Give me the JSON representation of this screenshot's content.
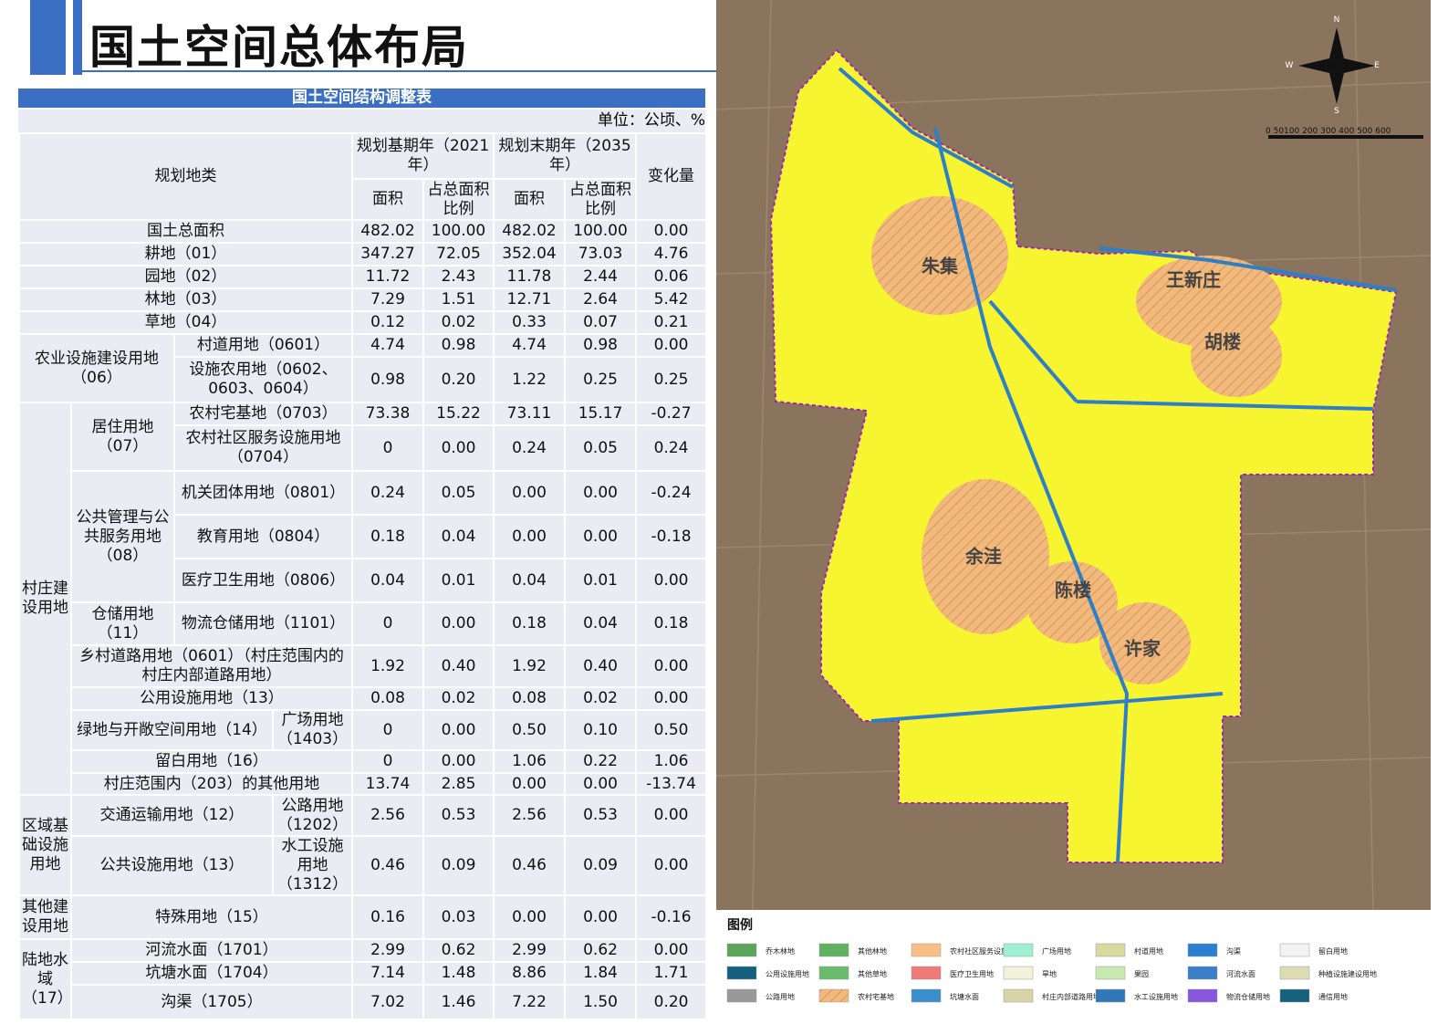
{
  "header": {
    "title": "国土空间总体布局"
  },
  "table": {
    "title": "国土空间结构调整表",
    "unit": "单位：公顷、%",
    "head": {
      "category": "规划地类",
      "base": "规划基期年（2021年）",
      "target": "规划末期年（2035年）",
      "change": "变化量",
      "sub": [
        "面积",
        "占总面积比例",
        "面积",
        "占总面积比例"
      ]
    },
    "rows": [
      {
        "cells": [
          "国土总面积"
        ],
        "values": [
          "482.02",
          "100.00",
          "482.02",
          "100.00",
          "0.00"
        ]
      },
      {
        "cells": [
          "耕地（01）"
        ],
        "values": [
          "347.27",
          "72.05",
          "352.04",
          "73.03",
          "4.76"
        ]
      },
      {
        "cells": [
          "园地（02）"
        ],
        "values": [
          "11.72",
          "2.43",
          "11.78",
          "2.44",
          "0.06"
        ]
      },
      {
        "cells": [
          "林地（03）"
        ],
        "values": [
          "7.29",
          "1.51",
          "12.71",
          "2.64",
          "5.42"
        ]
      },
      {
        "cells": [
          "草地（04）"
        ],
        "values": [
          "0.12",
          "0.02",
          "0.33",
          "0.07",
          "0.21"
        ]
      },
      {
        "cells": [
          "农业设施建设用地（06）",
          "村道用地（0601）"
        ],
        "values": [
          "4.74",
          "0.98",
          "4.74",
          "0.98",
          "0.00"
        ]
      },
      {
        "cells": [
          "设施农用地（0602、0603、0604）"
        ],
        "values": [
          "0.98",
          "0.20",
          "1.22",
          "0.25",
          "0.25"
        ]
      },
      {
        "cells": [
          "村庄建设用地",
          "居住用地（07）",
          "农村宅基地（0703）"
        ],
        "values": [
          "73.38",
          "15.22",
          "73.11",
          "15.17",
          "-0.27"
        ]
      },
      {
        "cells": [
          "农村社区服务设施用地（0704）"
        ],
        "values": [
          "0",
          "0.00",
          "0.24",
          "0.05",
          "0.24"
        ]
      },
      {
        "cells": [
          "公共管理与公共服务用地（08）",
          "机关团体用地（0801）"
        ],
        "values": [
          "0.24",
          "0.05",
          "0.00",
          "0.00",
          "-0.24"
        ]
      },
      {
        "cells": [
          "教育用地（0804）"
        ],
        "values": [
          "0.18",
          "0.04",
          "0.00",
          "0.00",
          "-0.18"
        ]
      },
      {
        "cells": [
          "医疗卫生用地（0806）"
        ],
        "values": [
          "0.04",
          "0.01",
          "0.04",
          "0.01",
          "0.00"
        ]
      },
      {
        "cells": [
          "仓储用地（11）",
          "物流仓储用地（1101）"
        ],
        "values": [
          "0",
          "0.00",
          "0.18",
          "0.04",
          "0.18"
        ]
      },
      {
        "cells": [
          "乡村道路用地（0601）（村庄范围内的村庄内部道路用地）"
        ],
        "values": [
          "1.92",
          "0.40",
          "1.92",
          "0.40",
          "0.00"
        ]
      },
      {
        "cells": [
          "公用设施用地（13）"
        ],
        "values": [
          "0.08",
          "0.02",
          "0.08",
          "0.02",
          "0.00"
        ]
      },
      {
        "cells": [
          "绿地与开敞空间用地（14）",
          "广场用地（1403）"
        ],
        "values": [
          "0",
          "0.00",
          "0.50",
          "0.10",
          "0.50"
        ]
      },
      {
        "cells": [
          "留白用地（16）"
        ],
        "values": [
          "0",
          "0.00",
          "1.06",
          "0.22",
          "1.06"
        ]
      },
      {
        "cells": [
          "村庄范围内（203）的其他用地"
        ],
        "values": [
          "13.74",
          "2.85",
          "0.00",
          "0.00",
          "-13.74"
        ]
      },
      {
        "cells": [
          "区域基础设施用地",
          "交通运输用地（12）",
          "公路用地（1202）"
        ],
        "values": [
          "2.56",
          "0.53",
          "2.56",
          "0.53",
          "0.00"
        ]
      },
      {
        "cells": [
          "公共设施用地（13）",
          "水工设施用地（1312）"
        ],
        "values": [
          "0.46",
          "0.09",
          "0.46",
          "0.09",
          "0.00"
        ]
      },
      {
        "cells": [
          "其他建设用地",
          "特殊用地（15）"
        ],
        "values": [
          "0.16",
          "0.03",
          "0.00",
          "0.00",
          "-0.16"
        ]
      },
      {
        "cells": [
          "陆地水域（17）",
          "河流水面（1701）"
        ],
        "values": [
          "2.99",
          "0.62",
          "2.99",
          "0.62",
          "0.00"
        ]
      },
      {
        "cells": [
          "坑塘水面（1704）"
        ],
        "values": [
          "7.14",
          "1.48",
          "8.86",
          "1.84",
          "1.71"
        ]
      },
      {
        "cells": [
          "沟渠（1705）"
        ],
        "values": [
          "7.02",
          "1.46",
          "7.22",
          "1.50",
          "0.20"
        ]
      }
    ]
  },
  "map": {
    "places": [
      "朱集",
      "王新庄",
      "胡楼",
      "余洼",
      "陈楼",
      "许家"
    ],
    "compass": [
      "N",
      "S",
      "W",
      "E"
    ],
    "scale": "0 50100 200 300 400 500 600",
    "legend": {
      "title": "图例",
      "items": [
        "乔木林地",
        "其他林地",
        "农村社区服务设施用地",
        "广场用地",
        "村道用地",
        "沟渠",
        "留白用地",
        "公用设施用地",
        "其他草地",
        "医疗卫生用地",
        "旱地",
        "果园",
        "河流水面",
        "种植设施建设用地",
        "公路用地",
        "农村宅基地",
        "坑塘水面",
        "村庄内部道路用地",
        "水工设施用地",
        "物流仓储用地",
        "通信用地"
      ]
    }
  }
}
